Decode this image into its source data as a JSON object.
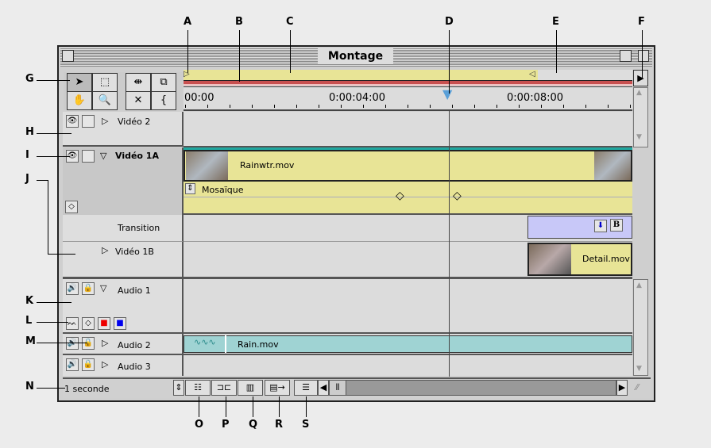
{
  "window": {
    "title": "Montage"
  },
  "ruler": {
    "labels": [
      "00:00",
      "0:00:04:00",
      "0:00:08:00"
    ]
  },
  "tracks": {
    "video2": "Vidéo 2",
    "video1a": "Vidéo 1A",
    "transition": "Transition",
    "video1b": "Vidéo 1B",
    "audio1": "Audio 1",
    "audio2": "Audio 2",
    "audio3": "Audio 3"
  },
  "clips": {
    "rainwtr": "Rainwtr.mov",
    "mosaique": "Mosaïque",
    "detail": "Detail.mov",
    "rain": "Rain.mov"
  },
  "bottom": {
    "zoom_value": "1 seconde"
  },
  "callouts": {
    "top": [
      "A",
      "B",
      "C",
      "D",
      "E",
      "F"
    ],
    "left": [
      "G",
      "H",
      "I",
      "J",
      "K",
      "L",
      "M",
      "N"
    ],
    "bottom": [
      "O",
      "P",
      "Q",
      "R",
      "S"
    ]
  },
  "colors": {
    "clip_video": "#e8e496",
    "clip_audio": "#9fd3d3",
    "transition": "#c8c8f8",
    "work_area_line": "#c85050",
    "playhead": "#5aa0d8"
  }
}
